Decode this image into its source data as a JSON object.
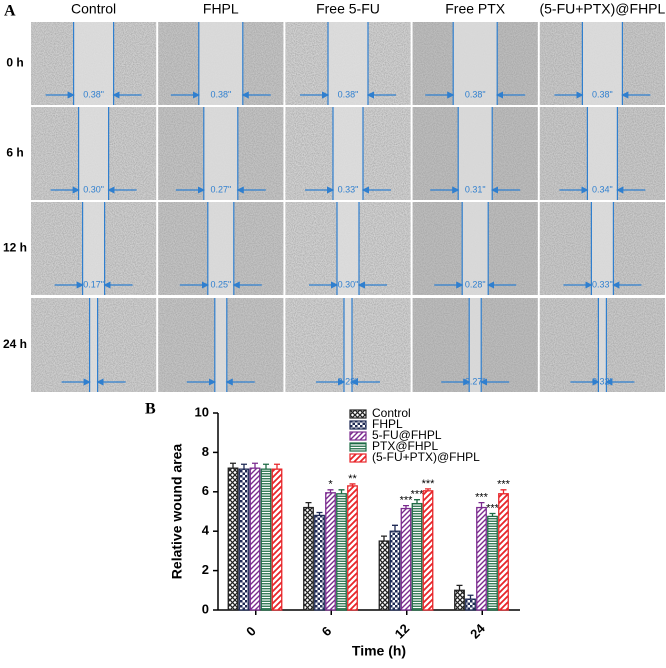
{
  "panel_labels": [
    "A",
    "B"
  ],
  "micrographs": {
    "columns": [
      "Control",
      "FHPL",
      "Free 5-FU",
      "Free PTX",
      "(5-FU+PTX)@FHPL"
    ],
    "rows": [
      "0 h",
      "6 h",
      "12 h",
      "24 h"
    ],
    "gap_widths": [
      [
        "0.38\"",
        "0.38\"",
        "0.38\"",
        "0.38\"",
        "0.38\""
      ],
      [
        "0.30\"",
        "0.27\"",
        "0.33\"",
        "0.31\"",
        "0.34\""
      ],
      [
        "0.17\"",
        "0.25\"",
        "0.30\"",
        "0.28\"",
        "0.33\""
      ],
      [
        null,
        null,
        "0.28\"",
        "0.27\"",
        "0.32\""
      ]
    ]
  },
  "chart_data": {
    "type": "bar",
    "ylabel": "Relative wound area",
    "xlabel": "Time (h)",
    "categories": [
      "0",
      "6",
      "12",
      "24"
    ],
    "ylim": [
      0,
      10
    ],
    "yticks": [
      0,
      2,
      4,
      6,
      8,
      10
    ],
    "series": [
      {
        "name": "Control",
        "color": "#222222",
        "pattern": "crosshatch",
        "values": [
          7.2,
          5.2,
          3.5,
          1.0
        ],
        "errors": [
          0.25,
          0.25,
          0.25,
          0.25
        ],
        "significance": [
          null,
          null,
          null,
          null
        ]
      },
      {
        "name": "FHPL",
        "color": "#1f2a55",
        "pattern": "checker",
        "values": [
          7.15,
          4.8,
          4.0,
          0.55
        ],
        "errors": [
          0.25,
          0.15,
          0.3,
          0.2
        ],
        "significance": [
          null,
          null,
          null,
          null
        ]
      },
      {
        "name": "5-FU@FHPL",
        "color": "#7b2c8f",
        "pattern": "diagonal",
        "values": [
          7.2,
          5.95,
          5.15,
          5.2
        ],
        "errors": [
          0.25,
          0.15,
          0.15,
          0.25
        ],
        "significance": [
          null,
          "*",
          "***",
          "***"
        ]
      },
      {
        "name": "PTX@FHPL",
        "color": "#1f6b45",
        "pattern": "horizontal",
        "values": [
          7.15,
          5.9,
          5.4,
          4.75
        ],
        "errors": [
          0.25,
          0.2,
          0.2,
          0.15
        ],
        "significance": [
          null,
          null,
          "***",
          "***"
        ]
      },
      {
        "name": "(5-FU+PTX)@FHPL",
        "color": "#e8262a",
        "pattern": "diagonal-wide",
        "values": [
          7.15,
          6.3,
          6.05,
          5.9
        ],
        "errors": [
          0.25,
          0.1,
          0.1,
          0.2
        ],
        "significance": [
          null,
          "**",
          "***",
          "***"
        ]
      }
    ]
  }
}
